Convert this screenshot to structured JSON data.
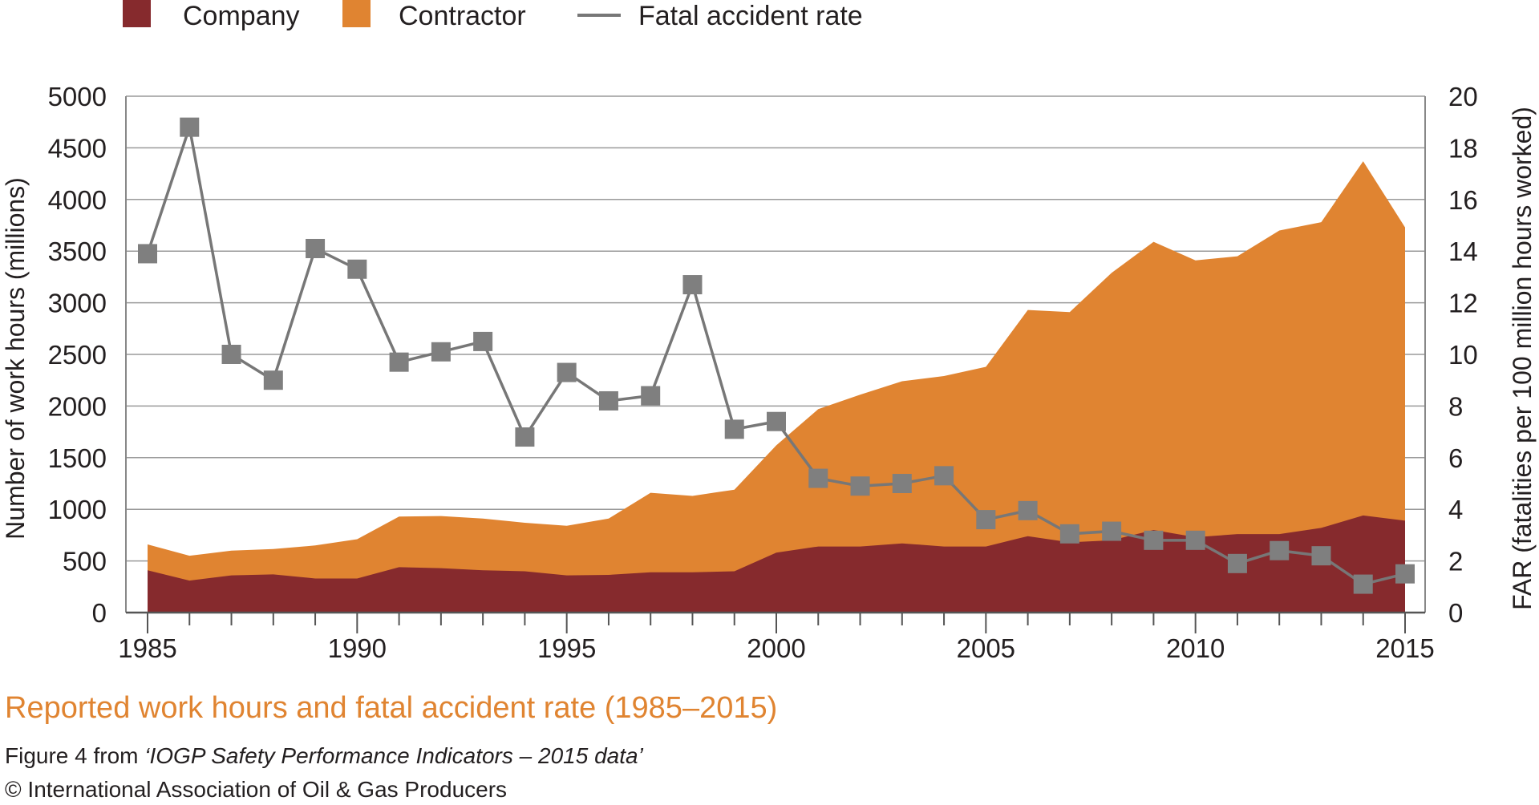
{
  "legend": {
    "company": "Company",
    "contractor": "Contractor",
    "far": "Fatal accident rate"
  },
  "caption": {
    "title": "Reported work hours and fatal accident rate (1985–2015)",
    "source_prefix": "Figure 4 from ",
    "source_title": "‘IOGP Safety Performance Indicators – 2015 data’",
    "copyright": "© International Association of Oil & Gas Producers"
  },
  "colors": {
    "company": "#862a2d",
    "contractor": "#e08431",
    "far_line": "#777777",
    "far_marker": "#7f7f7f",
    "grid": "#9a9a9a",
    "title": "#e08431"
  },
  "chart_data": {
    "type": "area",
    "stacked": true,
    "x": [
      1985,
      1986,
      1987,
      1988,
      1989,
      1990,
      1991,
      1992,
      1993,
      1994,
      1995,
      1996,
      1997,
      1998,
      1999,
      2000,
      2001,
      2002,
      2003,
      2004,
      2005,
      2006,
      2007,
      2008,
      2009,
      2010,
      2011,
      2012,
      2013,
      2014,
      2015
    ],
    "series": [
      {
        "name": "Company",
        "type": "area",
        "axis": "left",
        "values": [
          410,
          310,
          360,
          370,
          330,
          330,
          440,
          430,
          410,
          400,
          360,
          365,
          390,
          390,
          400,
          580,
          640,
          640,
          670,
          640,
          640,
          740,
          680,
          700,
          800,
          730,
          760,
          760,
          820,
          940,
          890
        ]
      },
      {
        "name": "Contractor",
        "type": "area",
        "axis": "left",
        "values": [
          250,
          240,
          240,
          245,
          320,
          380,
          490,
          505,
          500,
          470,
          480,
          545,
          770,
          740,
          790,
          1040,
          1330,
          1470,
          1570,
          1650,
          1740,
          2190,
          2230,
          2590,
          2790,
          2680,
          2690,
          2940,
          2960,
          3430,
          2840
        ]
      },
      {
        "name": "Fatal accident rate",
        "type": "line",
        "axis": "right",
        "marker": "square",
        "values": [
          13.9,
          18.8,
          10.0,
          9.0,
          14.1,
          13.3,
          9.7,
          10.1,
          10.5,
          6.8,
          9.3,
          8.2,
          8.4,
          12.7,
          7.1,
          7.4,
          5.2,
          4.9,
          5.0,
          5.3,
          3.6,
          3.95,
          3.05,
          3.15,
          2.8,
          2.8,
          1.9,
          2.4,
          2.2,
          1.1,
          1.5
        ]
      }
    ],
    "xlim": [
      1985,
      2015
    ],
    "x_ticks": [
      "1985",
      "1990",
      "1995",
      "2000",
      "2005",
      "2010",
      "2015"
    ],
    "ylabel": "Number of work hours (millions)",
    "ylim": [
      0,
      5000
    ],
    "y_ticks": [
      "0",
      "500",
      "1000",
      "1500",
      "2000",
      "2500",
      "3000",
      "3500",
      "4000",
      "4500",
      "5000"
    ],
    "y2label": "FAR (fatalities per 100 million hours worked)",
    "y2lim": [
      0,
      20
    ],
    "y2_ticks": [
      "0",
      "2",
      "4",
      "6",
      "8",
      "10",
      "12",
      "14",
      "16",
      "18",
      "20"
    ],
    "grid": true,
    "legend_position": "top-left"
  }
}
